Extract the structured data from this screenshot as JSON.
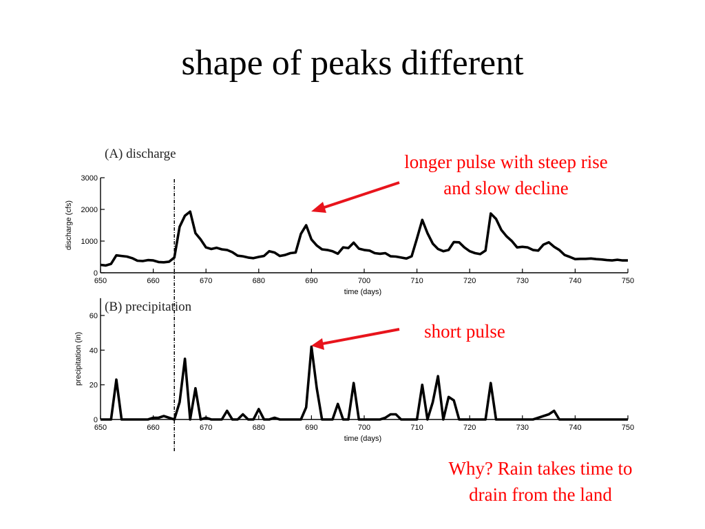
{
  "slide": {
    "title": "shape of peaks different"
  },
  "annotations": {
    "pulse_long": [
      "longer pulse with steep rise",
      "and slow decline"
    ],
    "pulse_short": "short pulse",
    "why": [
      "Why? Rain takes time to",
      "drain from the land"
    ]
  },
  "colors": {
    "line": "#000000",
    "annotation": "#ff0000",
    "arrow": "#e8141c"
  },
  "event_marker_day": 664,
  "chart_data": [
    {
      "type": "line",
      "panel_label": "(A) discharge",
      "xlabel": "time (days)",
      "ylabel": "discharge (cfs)",
      "xlim": [
        650,
        750
      ],
      "ylim": [
        0,
        3000
      ],
      "xticks": [
        650,
        660,
        670,
        680,
        690,
        700,
        710,
        720,
        730,
        740,
        750
      ],
      "yticks": [
        0,
        1000,
        2000,
        3000
      ],
      "grid": false,
      "x": [
        650,
        651,
        652,
        653,
        654,
        655,
        656,
        657,
        658,
        659,
        660,
        661,
        662,
        663,
        664,
        665,
        666,
        667,
        668,
        669,
        670,
        671,
        672,
        673,
        674,
        675,
        676,
        677,
        678,
        679,
        680,
        681,
        682,
        683,
        684,
        685,
        686,
        687,
        688,
        689,
        690,
        691,
        692,
        693,
        694,
        695,
        696,
        697,
        698,
        699,
        700,
        701,
        702,
        703,
        704,
        705,
        706,
        707,
        708,
        709,
        710,
        711,
        712,
        713,
        714,
        715,
        716,
        717,
        718,
        719,
        720,
        721,
        722,
        723,
        724,
        725,
        726,
        727,
        728,
        729,
        730,
        731,
        732,
        733,
        734,
        735,
        736,
        737,
        738,
        739,
        740,
        741,
        742,
        743,
        744,
        745,
        746,
        747,
        748,
        749,
        750
      ],
      "y": [
        250,
        230,
        280,
        550,
        530,
        510,
        460,
        380,
        370,
        400,
        390,
        340,
        330,
        350,
        480,
        1450,
        1800,
        1930,
        1250,
        1050,
        800,
        750,
        790,
        740,
        720,
        650,
        540,
        520,
        480,
        460,
        500,
        530,
        680,
        640,
        530,
        560,
        620,
        640,
        1230,
        1500,
        1050,
        860,
        740,
        720,
        680,
        600,
        800,
        780,
        950,
        760,
        720,
        700,
        620,
        600,
        620,
        520,
        510,
        480,
        450,
        520,
        1080,
        1670,
        1250,
        920,
        750,
        680,
        720,
        970,
        960,
        800,
        680,
        620,
        590,
        700,
        1870,
        1700,
        1350,
        1150,
        1000,
        800,
        820,
        800,
        720,
        700,
        890,
        960,
        820,
        720,
        560,
        500,
        430,
        440,
        440,
        450,
        430,
        420,
        400,
        390,
        410,
        390,
        390
      ]
    },
    {
      "type": "line",
      "panel_label": "(B) precipitation",
      "xlabel": "time (days)",
      "ylabel": "precipitation (in)",
      "xlim": [
        650,
        750
      ],
      "ylim": [
        0,
        70
      ],
      "xticks": [
        650,
        660,
        670,
        680,
        690,
        700,
        710,
        720,
        730,
        740,
        750
      ],
      "yticks": [
        0,
        20,
        40,
        60
      ],
      "grid": false,
      "x": [
        650,
        651,
        652,
        653,
        654,
        655,
        656,
        657,
        658,
        659,
        660,
        661,
        662,
        663,
        664,
        665,
        666,
        667,
        668,
        669,
        670,
        671,
        672,
        673,
        674,
        675,
        676,
        677,
        678,
        679,
        680,
        681,
        682,
        683,
        684,
        685,
        686,
        687,
        688,
        689,
        690,
        691,
        692,
        693,
        694,
        695,
        696,
        697,
        698,
        699,
        700,
        701,
        702,
        703,
        704,
        705,
        706,
        707,
        708,
        709,
        710,
        711,
        712,
        713,
        714,
        715,
        716,
        717,
        718,
        719,
        720,
        721,
        722,
        723,
        724,
        725,
        726,
        727,
        728,
        729,
        730,
        731,
        732,
        733,
        734,
        735,
        736,
        737,
        738,
        739,
        740,
        741,
        742,
        743,
        744,
        745,
        746,
        747,
        748,
        749,
        750
      ],
      "y": [
        0,
        0,
        0,
        23,
        0,
        0,
        0,
        0,
        0,
        0,
        1,
        1,
        2,
        1,
        0,
        10,
        35,
        0,
        18,
        0,
        1,
        0,
        0,
        0,
        5,
        0,
        0,
        3,
        0,
        0,
        6,
        0,
        0,
        1,
        0,
        0,
        0,
        0,
        0,
        7,
        42,
        18,
        0,
        0,
        0,
        9,
        0,
        0,
        21,
        0,
        0,
        0,
        0,
        0,
        1,
        3,
        3,
        0,
        0,
        0,
        0,
        20,
        0,
        10,
        25,
        0,
        13,
        11,
        0,
        0,
        0,
        0,
        0,
        0,
        21,
        0,
        0,
        0,
        0,
        0,
        0,
        0,
        0,
        1,
        2,
        3,
        5,
        0,
        0,
        0,
        0,
        0,
        0,
        0,
        0,
        0,
        0,
        0,
        0,
        0,
        0
      ]
    }
  ]
}
